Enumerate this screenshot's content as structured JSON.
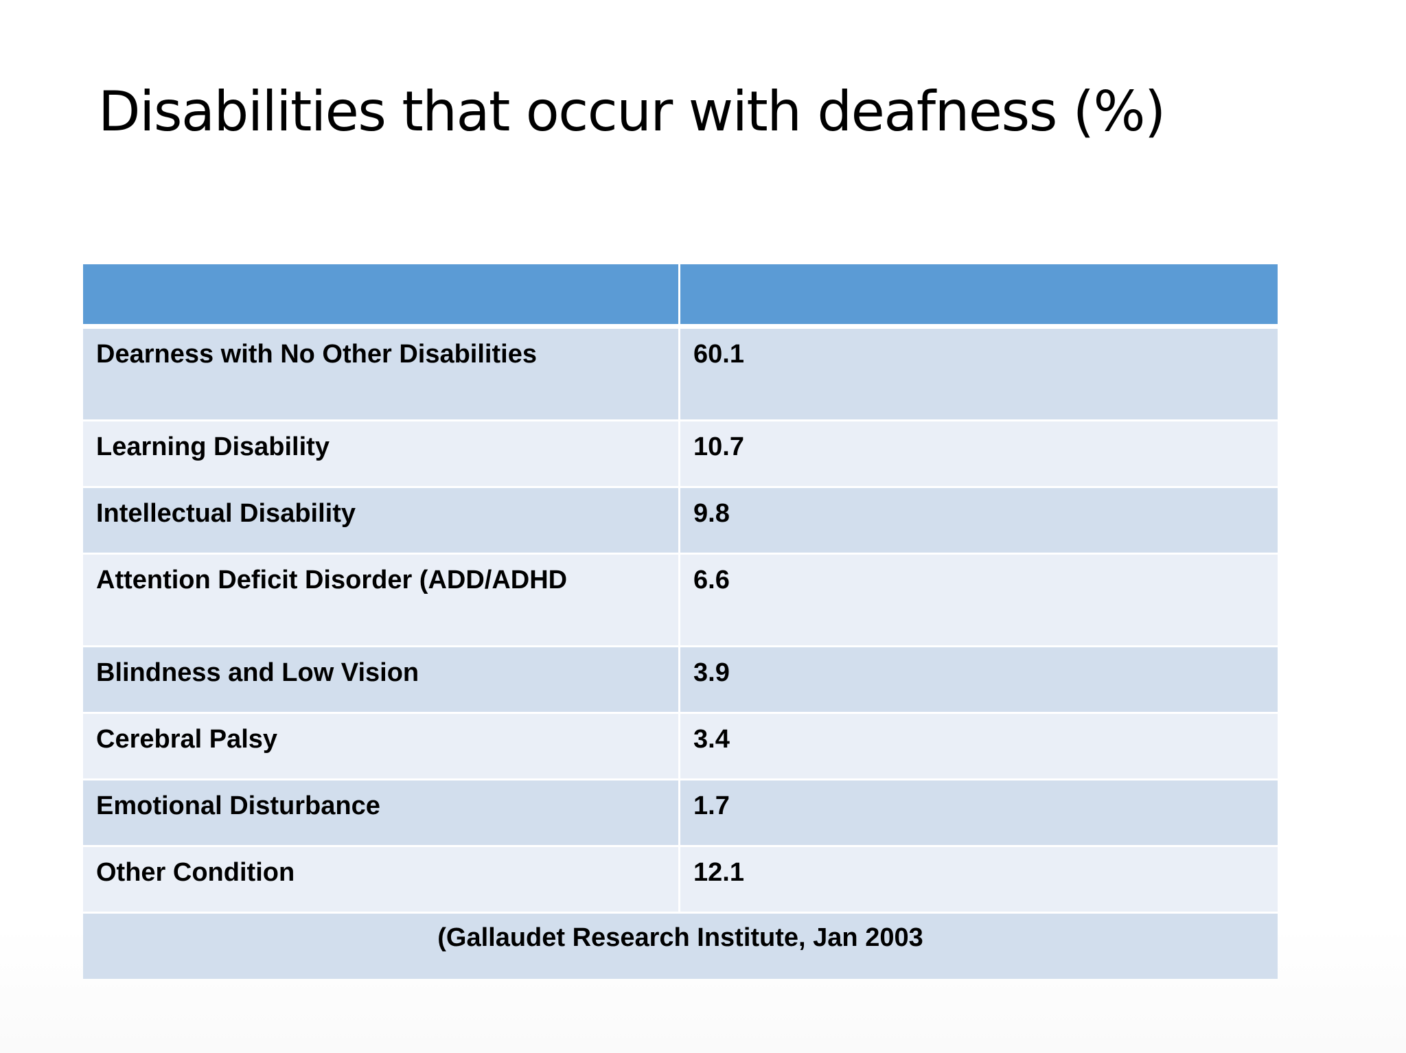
{
  "slide": {
    "title": "Disabilities that occur with deafness (%)"
  },
  "table": {
    "headers": [
      "",
      ""
    ],
    "rows": [
      {
        "label": "Dearness with No Other Disabilities",
        "value": "60.1"
      },
      {
        "label": "Learning Disability",
        "value": "10.7"
      },
      {
        "label": "Intellectual Disability",
        "value": "9.8"
      },
      {
        "label": "Attention Deficit Disorder (ADD/ADHD",
        "value": "6.6"
      },
      {
        "label": "Blindness and Low Vision",
        "value": "3.9"
      },
      {
        "label": "Cerebral Palsy",
        "value": "3.4"
      },
      {
        "label": "Emotional Disturbance",
        "value": "1.7"
      },
      {
        "label": "Other Condition",
        "value": "12.1"
      }
    ],
    "source": "(Gallaudet Research Institute, Jan 2003"
  },
  "colors": {
    "header": "#5b9bd5",
    "row_band_dark": "#d2deed",
    "row_band_light": "#eaeff7",
    "text": "#000000"
  }
}
